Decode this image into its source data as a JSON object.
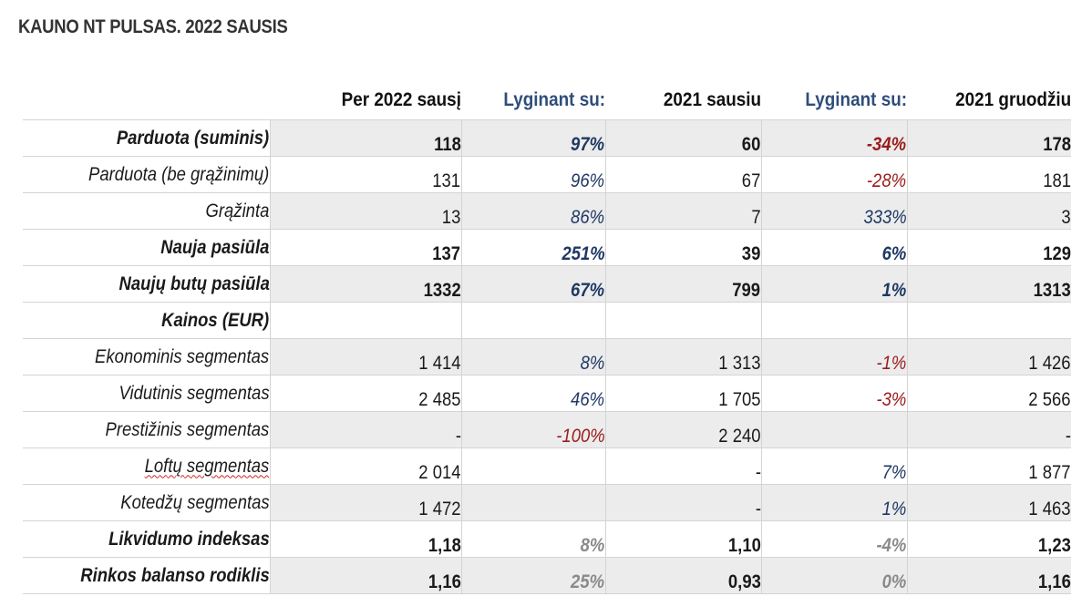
{
  "title": "KAUNO NT PULSAS. 2022 SAUSIS",
  "colors": {
    "compare_header": "#2f4d7a",
    "positive": "#1f3864",
    "negative": "#9b1b1b",
    "muted": "#8a8a8a",
    "shade": "#ececec"
  },
  "headers": [
    "Per 2022 sausį",
    "Lyginant su:",
    "2021 sausiu",
    "Lyginant su:",
    "2021 gruodžiu"
  ],
  "rows": [
    {
      "label": "Parduota (suminis)",
      "cells": [
        "118",
        "97%",
        "60",
        "-34%",
        "178"
      ]
    },
    {
      "label": "Parduota (be grąžinimų)",
      "cells": [
        "131",
        "96%",
        "67",
        "-28%",
        "181"
      ]
    },
    {
      "label": "Grąžinta",
      "cells": [
        "13",
        "86%",
        "7",
        "333%",
        "3"
      ]
    },
    {
      "label": "Nauja pasiūla",
      "cells": [
        "137",
        "251%",
        "39",
        "6%",
        "129"
      ]
    },
    {
      "label": "Naujų butų pasiūla",
      "cells": [
        "1332",
        "67%",
        "799",
        "1%",
        "1313"
      ]
    },
    {
      "label": "Kainos (EUR)",
      "cells": [
        "",
        "",
        "",
        "",
        ""
      ]
    },
    {
      "label": "Ekonominis segmentas",
      "cells": [
        "1 414",
        "8%",
        "1 313",
        "-1%",
        "1 426"
      ]
    },
    {
      "label": "Vidutinis segmentas",
      "cells": [
        "2 485",
        "46%",
        "1 705",
        "-3%",
        "2 566"
      ]
    },
    {
      "label": "Prestižinis segmentas",
      "cells": [
        "-",
        "-100%",
        "2 240",
        "",
        "-"
      ]
    },
    {
      "label": "Loftų segmentas",
      "cells": [
        "2 014",
        "",
        "-",
        "7%",
        "1 877"
      ]
    },
    {
      "label": "Kotedžų segmentas",
      "cells": [
        "1 472",
        "",
        "-",
        "1%",
        "1 463"
      ]
    },
    {
      "label": "Likvidumo indeksas",
      "cells": [
        "1,18",
        "8%",
        "1,10",
        "-4%",
        "1,23"
      ]
    },
    {
      "label": "Rinkos balanso rodiklis",
      "cells": [
        "1,16",
        "25%",
        "0,93",
        "0%",
        "1,16"
      ]
    }
  ]
}
